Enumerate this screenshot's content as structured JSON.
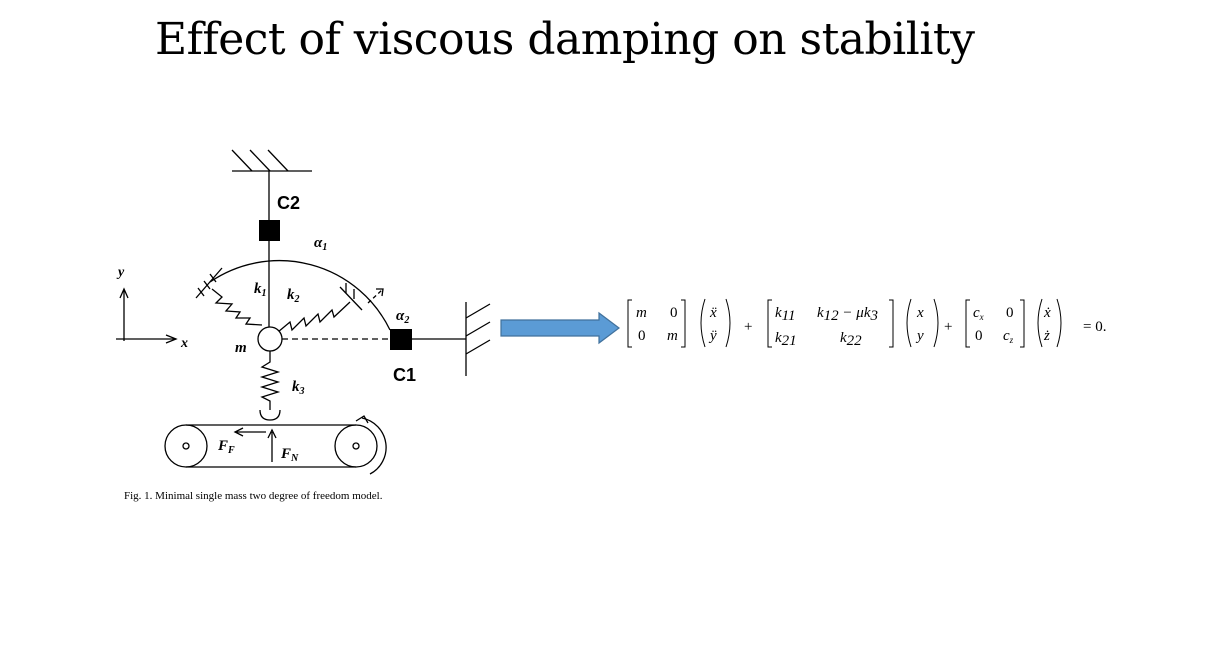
{
  "slide": {
    "title": "Effect of viscous damping on stability"
  },
  "figure": {
    "labels": {
      "c2": "C2",
      "c1": "C1",
      "alpha1": "α",
      "alpha1_sub": "1",
      "alpha2": "α",
      "alpha2_sub": "2",
      "k1": "k",
      "k1_sub": "1",
      "k2": "k",
      "k2_sub": "2",
      "k3": "k",
      "k3_sub": "3",
      "m": "m",
      "x": "x",
      "y": "y",
      "ff": "F",
      "ff_sub": "F",
      "fn": "F",
      "fn_sub": "N"
    },
    "caption": "Fig. 1. Minimal single mass two degree of freedom model."
  },
  "arrow": {
    "color": "#5b9bd5",
    "border": "#41719c"
  },
  "equation": {
    "mass": {
      "a": "m",
      "b": "0",
      "c": "0",
      "d": "m"
    },
    "acc": {
      "top": "ẍ",
      "bottom": "ÿ"
    },
    "plus1": "+",
    "stiff": {
      "a": "k",
      "a_sub": "11",
      "b": "k",
      "b_sub": "12",
      "b_rest": " − μk",
      "b_rest_sub": "3",
      "c": "k",
      "c_sub": "21",
      "d": "k",
      "d_sub": "22"
    },
    "pos": {
      "top": "x",
      "bottom": "y"
    },
    "plus2": "+",
    "damp": {
      "a": "c",
      "a_sub": "x",
      "b": "0",
      "c": "0",
      "d": "c",
      "d_sub": "z"
    },
    "vel": {
      "top": "ẋ",
      "bottom": "ż"
    },
    "rhs": "= 0."
  }
}
